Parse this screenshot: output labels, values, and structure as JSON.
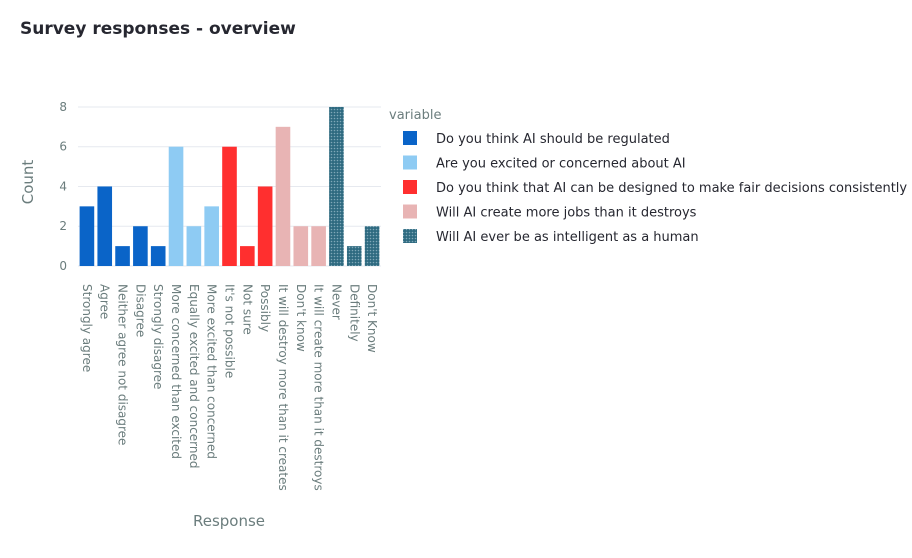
{
  "page": {
    "title": "Survey responses - overview"
  },
  "chart_data": {
    "type": "bar",
    "xlabel": "Response",
    "ylabel": "Count",
    "ylim": [
      0,
      8.4
    ],
    "yticks": [
      0,
      2,
      4,
      6,
      8
    ],
    "grid": true,
    "legend_title": "variable",
    "legend_position": "right",
    "series": [
      {
        "name": "Do you think AI should be regulated",
        "color": "#0a64c8",
        "pattern": "none",
        "categories": [
          "Strongly agree",
          "Agree",
          "Neither agree not disagree",
          "Disagree",
          "Strongly disagree"
        ],
        "values": [
          3,
          4,
          1,
          2,
          1
        ]
      },
      {
        "name": "Are you excited or concerned about AI",
        "color": "#8ecbf3",
        "pattern": "none",
        "categories": [
          "More concerned than excited",
          "Equally excited and concerned",
          "More excited than concerned"
        ],
        "values": [
          6,
          2,
          3
        ]
      },
      {
        "name": "Do you think that AI  can be designed to make fair decisions consistently",
        "color": "#ff2f2f",
        "pattern": "none",
        "categories": [
          "It's not possible",
          "Not sure",
          "Possibly"
        ],
        "values": [
          6,
          1,
          4
        ]
      },
      {
        "name": "Will AI create more jobs than it destroys",
        "color": "#e8b4b4",
        "pattern": "none",
        "categories": [
          "It will destroy more than it creates",
          "Don't know",
          "It will create more than it destroys"
        ],
        "values": [
          7,
          2,
          2
        ]
      },
      {
        "name": "Will AI ever be as intelligent as a human",
        "color": "#2e6a80",
        "pattern": "dots",
        "categories": [
          "Never",
          "Definitely",
          "Don't Know"
        ],
        "values": [
          8,
          1,
          2
        ]
      }
    ]
  }
}
